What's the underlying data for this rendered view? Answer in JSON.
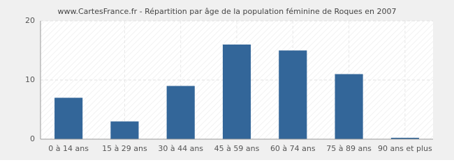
{
  "chart_data": {
    "type": "bar",
    "title": "www.CartesFrance.fr - Répartition par âge de la population féminine de Roques en 2007",
    "categories": [
      "0 à 14 ans",
      "15 à 29 ans",
      "30 à 44 ans",
      "45 à 59 ans",
      "60 à 74 ans",
      "75 à 89 ans",
      "90 ans et plus"
    ],
    "values": [
      7,
      3,
      9,
      16,
      15,
      11,
      0
    ],
    "color": "#336699",
    "ylim": [
      0,
      20
    ],
    "yticks": [
      0,
      10,
      20
    ],
    "grid": true
  }
}
